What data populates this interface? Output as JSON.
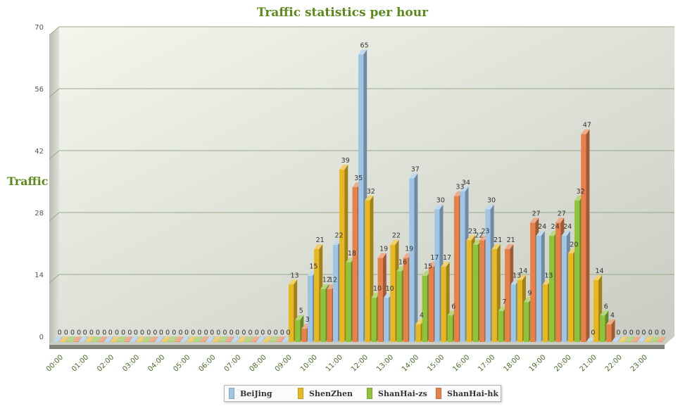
{
  "chart_data": {
    "type": "bar",
    "title": "Traffic statistics per hour",
    "xlabel": "",
    "ylabel": "Traffic",
    "ylim": [
      0,
      70
    ],
    "yticks": [
      0,
      14,
      28,
      42,
      56,
      70
    ],
    "grid": true,
    "legend_position": "bottom-center",
    "categories": [
      "00:00",
      "01:00",
      "02:00",
      "03:00",
      "04:00",
      "05:00",
      "06:00",
      "07:00",
      "08:00",
      "09:00",
      "10:00",
      "11:00",
      "12:00",
      "13:00",
      "14:00",
      "15:00",
      "16:00",
      "17:00",
      "18:00",
      "19:00",
      "20:00",
      "21:00",
      "22:00",
      "23:00"
    ],
    "series": [
      {
        "name": "BeiJing",
        "color": "#9fc5e6",
        "values": [
          0,
          0,
          0,
          0,
          0,
          0,
          0,
          0,
          0,
          0,
          15,
          22,
          65,
          10,
          37,
          30,
          34,
          30,
          13,
          24,
          24,
          0,
          0,
          0
        ]
      },
      {
        "name": "ShenZhen",
        "color": "#e8b820",
        "values": [
          0,
          0,
          0,
          0,
          0,
          0,
          0,
          0,
          0,
          13,
          21,
          39,
          32,
          22,
          4,
          17,
          23,
          21,
          14,
          13,
          20,
          14,
          0,
          0
        ]
      },
      {
        "name": "ShanHai-zs",
        "color": "#8fc43a",
        "values": [
          0,
          0,
          0,
          0,
          0,
          0,
          0,
          0,
          0,
          5,
          12,
          18,
          10,
          16,
          15,
          6,
          22,
          7,
          9,
          24,
          32,
          6,
          0,
          0
        ]
      },
      {
        "name": "ShanHai-hk",
        "color": "#e8804a",
        "values": [
          0,
          0,
          0,
          0,
          0,
          0,
          0,
          0,
          0,
          3,
          12,
          35,
          19,
          19,
          17,
          33,
          23,
          21,
          27,
          27,
          47,
          4,
          0,
          0
        ]
      }
    ]
  }
}
